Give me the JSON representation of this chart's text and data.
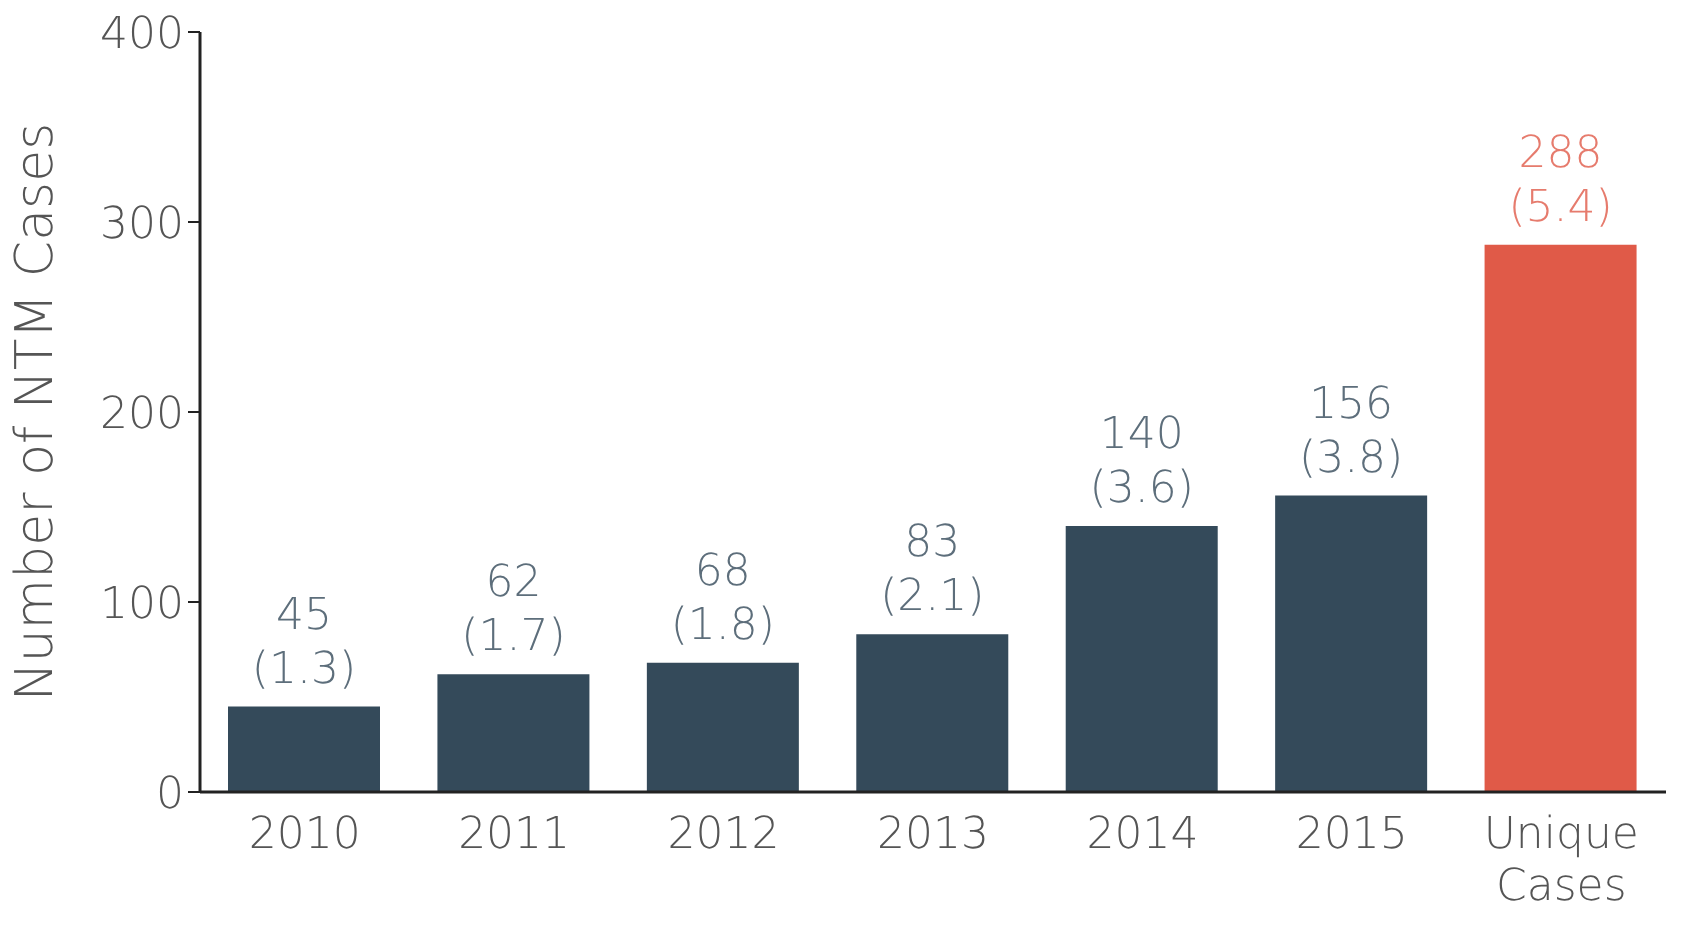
{
  "chart_data": {
    "type": "bar",
    "ylabel": "Number of NTM Cases",
    "categories": [
      "2010",
      "2011",
      "2012",
      "2013",
      "2014",
      "2015",
      "Unique Cases"
    ],
    "values": [
      45,
      62,
      68,
      83,
      140,
      156,
      288
    ],
    "colors": [
      "#344a5a",
      "#344a5a",
      "#344a5a",
      "#344a5a",
      "#344a5a",
      "#344a5a",
      "#e05a48"
    ],
    "value_labels": [
      "45 (1.3)",
      "62 (1.7)",
      "68 (1.8)",
      "83 (2.1)",
      "140 (3.6)",
      "156 (3.8)",
      "288 (5.4)"
    ],
    "ylim": [
      0,
      400
    ],
    "yticks": [
      0,
      100,
      200,
      300,
      400
    ],
    "grid": false,
    "legend": false
  }
}
